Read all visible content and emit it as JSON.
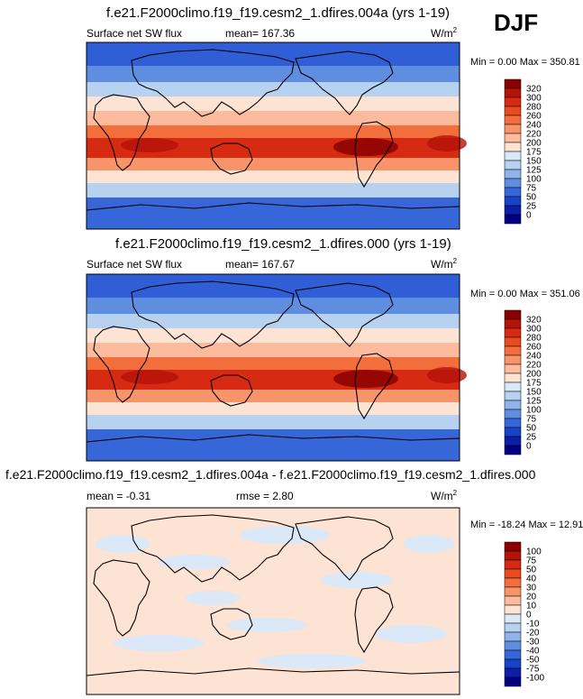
{
  "season": "DJF",
  "panels": [
    {
      "title": "f.e21.F2000climo.f19_f19.cesm2_1.dfires.004a (yrs 1-19)",
      "variable": "Surface net SW flux",
      "stat1": "mean= 167.36",
      "stat2": "",
      "units": "W/m",
      "units_sup": "2",
      "minmax": "Min =   0.00 Max = 350.81",
      "colorbar": {
        "labels": [
          "320",
          "300",
          "280",
          "260",
          "240",
          "220",
          "200",
          "175",
          "150",
          "125",
          "100",
          "75",
          "50",
          "25",
          "0"
        ],
        "colors": [
          "#8b0000",
          "#b5120a",
          "#d62a12",
          "#e84b1c",
          "#f26f3d",
          "#f7946a",
          "#fbbb9c",
          "#fde3d3",
          "#dbe8f7",
          "#b7d1f1",
          "#8fb3ea",
          "#5f8ee0",
          "#3766d9",
          "#1842c8",
          "#0b1fa8",
          "#000080"
        ]
      }
    },
    {
      "title": "f.e21.F2000climo.f19_f19.cesm2_1.dfires.000 (yrs 1-19)",
      "variable": "Surface net SW flux",
      "stat1": "mean= 167.67",
      "stat2": "",
      "units": "W/m",
      "units_sup": "2",
      "minmax": "Min =   0.00 Max = 351.06",
      "colorbar": {
        "labels": [
          "320",
          "300",
          "280",
          "260",
          "240",
          "220",
          "200",
          "175",
          "150",
          "125",
          "100",
          "75",
          "50",
          "25",
          "0"
        ],
        "colors": [
          "#8b0000",
          "#b5120a",
          "#d62a12",
          "#e84b1c",
          "#f26f3d",
          "#f7946a",
          "#fbbb9c",
          "#fde3d3",
          "#dbe8f7",
          "#b7d1f1",
          "#8fb3ea",
          "#5f8ee0",
          "#3766d9",
          "#1842c8",
          "#0b1fa8",
          "#000080"
        ]
      }
    },
    {
      "title": "f.e21.F2000climo.f19_f19.cesm2_1.dfires.004a - f.e21.F2000climo.f19_f19.cesm2_1.dfires.000",
      "variable": "",
      "stat1": "mean =  -0.31",
      "stat2": "rmse =   2.80",
      "units": "W/m",
      "units_sup": "2",
      "minmax": "Min = -18.24 Max = 12.91",
      "colorbar": {
        "labels": [
          "100",
          "75",
          "50",
          "40",
          "30",
          "20",
          "10",
          "0",
          "-10",
          "-20",
          "-30",
          "-40",
          "-50",
          "-75",
          "-100"
        ],
        "colors": [
          "#8b0000",
          "#b5120a",
          "#d62a12",
          "#e84b1c",
          "#f26f3d",
          "#f7946a",
          "#fbbb9c",
          "#fde3d3",
          "#dbe8f7",
          "#b7d1f1",
          "#8fb3ea",
          "#5f8ee0",
          "#3766d9",
          "#1842c8",
          "#0b1fa8",
          "#000080"
        ]
      }
    }
  ]
}
